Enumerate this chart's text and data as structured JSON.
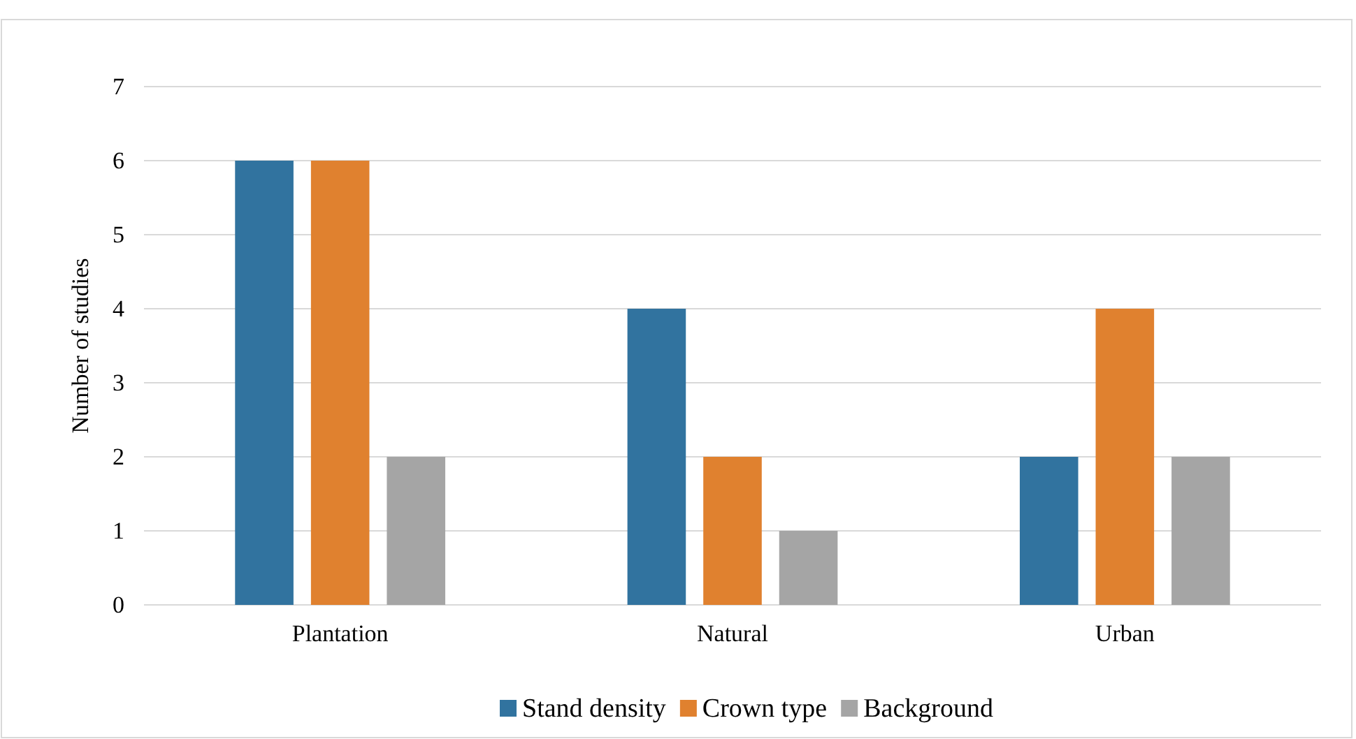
{
  "chart_data": {
    "type": "bar",
    "ylabel": "Number of studies",
    "categories": [
      "Plantation",
      "Natural",
      "Urban"
    ],
    "series": [
      {
        "name": "Stand density",
        "color": "#31739f",
        "values": [
          6,
          4,
          2
        ]
      },
      {
        "name": "Crown type",
        "color": "#e0812f",
        "values": [
          6,
          2,
          4
        ]
      },
      {
        "name": "Background",
        "color": "#a5a5a5",
        "values": [
          2,
          1,
          2
        ]
      }
    ],
    "ylim": [
      0,
      7
    ],
    "yticks": [
      0,
      1,
      2,
      3,
      4,
      5,
      6,
      7
    ],
    "grid": "y",
    "legend": "bottom"
  }
}
